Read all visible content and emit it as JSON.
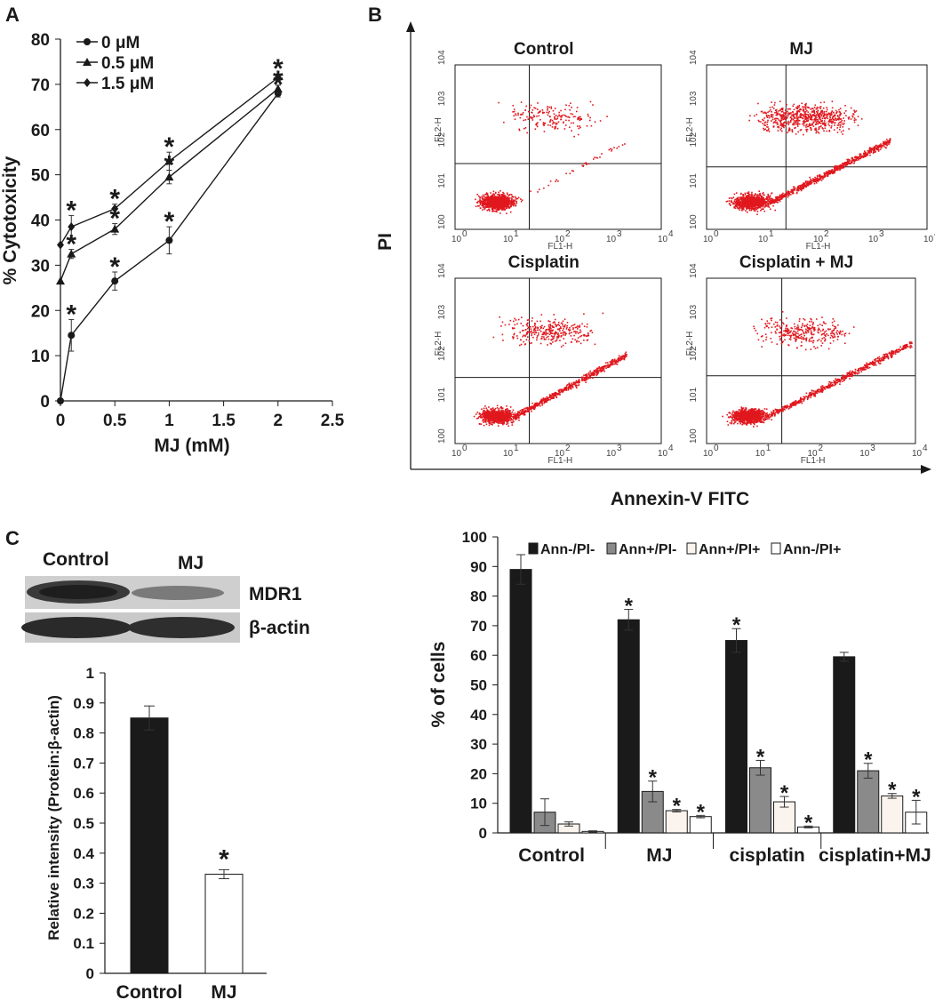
{
  "panels": {
    "a": "A",
    "b": "B",
    "c": "C"
  },
  "chart_data": [
    {
      "id": "A",
      "type": "line",
      "title": "",
      "xlabel": "MJ (mM)",
      "ylabel": "% Cytotoxicity",
      "xlim": [
        0,
        2.5
      ],
      "ylim": [
        0,
        80
      ],
      "xticks": [
        "0",
        "0.5",
        "1",
        "1.5",
        "2",
        "2.5"
      ],
      "yticks": [
        "0",
        "10",
        "20",
        "30",
        "40",
        "50",
        "60",
        "70",
        "80"
      ],
      "x": [
        0,
        0.1,
        0.5,
        1,
        2
      ],
      "series": [
        {
          "name": "0 μM",
          "marker": "circle",
          "values": [
            0,
            14.5,
            26.5,
            35.5,
            68
          ],
          "errors": [
            0,
            3.5,
            2,
            3,
            0.8
          ]
        },
        {
          "name": "0.5 μM",
          "marker": "triangle",
          "values": [
            26.5,
            32.5,
            38,
            49.5,
            69
          ],
          "errors": [
            0,
            1,
            1.2,
            1.5,
            0.8
          ]
        },
        {
          "name": "1.5 μM",
          "marker": "diamond",
          "values": [
            34.5,
            38.5,
            42.5,
            53,
            71.5
          ],
          "errors": [
            0,
            2.5,
            1,
            2,
            0.8
          ]
        }
      ],
      "annotations": [
        "*",
        "*",
        "*",
        "*",
        "*",
        "*",
        "*",
        "*",
        "*",
        "*",
        "*",
        "*"
      ],
      "legend_position": "top-left"
    },
    {
      "id": "B",
      "type": "scatter",
      "xlabel": "Annexin-V FITC",
      "ylabel": "PI",
      "plots": [
        {
          "title": "Control",
          "pattern": "control"
        },
        {
          "title": "MJ",
          "pattern": "mj"
        },
        {
          "title": "Cisplatin",
          "pattern": "cisplatin"
        },
        {
          "title": "Cisplatin + MJ",
          "pattern": "cisplatin_mj"
        }
      ],
      "axis_x_name": "FL1-H",
      "axis_y_name": "FL2-H",
      "decade_base": "10",
      "decade_exponents": [
        "0",
        "1",
        "2",
        "3",
        "4"
      ],
      "dot_color": "#e0181e"
    },
    {
      "id": "C-bar",
      "type": "bar",
      "xlabel": "",
      "ylabel": "Relative intensity (Protein:β-actin)",
      "ylim": [
        0,
        1
      ],
      "yticks": [
        "0",
        "0.1",
        "0.2",
        "0.3",
        "0.4",
        "0.5",
        "0.6",
        "0.7",
        "0.8",
        "0.9",
        "1"
      ],
      "categories": [
        "Control",
        "MJ"
      ],
      "values": [
        0.85,
        0.33
      ],
      "errors": [
        0.04,
        0.015
      ],
      "colors": [
        "#1a1a1a",
        "#ffffff"
      ],
      "annotations": [
        "",
        "*"
      ]
    },
    {
      "id": "D-bar",
      "type": "bar",
      "xlabel": "",
      "ylabel": "% of cells",
      "ylim": [
        0,
        100
      ],
      "yticks": [
        "0",
        "10",
        "20",
        "30",
        "40",
        "50",
        "60",
        "70",
        "80",
        "90",
        "100"
      ],
      "categories": [
        "Control",
        "MJ",
        "cisplatin",
        "cisplatin+MJ"
      ],
      "series": [
        {
          "name": "Ann-/PI-",
          "color": "#1a1a1a",
          "values": [
            89,
            72,
            65,
            59.5
          ],
          "errors": [
            5,
            3.5,
            4,
            1.5
          ],
          "stars": [
            "",
            "*",
            "*",
            ""
          ]
        },
        {
          "name": "Ann+/PI-",
          "color": "#8a8a8a",
          "values": [
            7,
            14,
            22,
            21
          ],
          "errors": [
            4.5,
            3.5,
            2.5,
            2.5
          ],
          "stars": [
            "",
            "*",
            "*",
            "*"
          ]
        },
        {
          "name": "Ann+/PI+",
          "color": "#fbf4ee",
          "values": [
            3,
            7.5,
            10.5,
            12.5
          ],
          "errors": [
            0.7,
            0.4,
            1.8,
            0.8
          ],
          "stars": [
            "",
            "*",
            "*",
            "*"
          ]
        },
        {
          "name": "Ann-/PI+",
          "color": "#ffffff",
          "values": [
            0.5,
            5.5,
            2,
            7
          ],
          "errors": [
            0.2,
            0.4,
            0.3,
            4
          ],
          "stars": [
            "",
            "*",
            "*",
            "*"
          ]
        }
      ],
      "legend_position": "top"
    }
  ],
  "blot": {
    "lanes": [
      "Control",
      "MJ"
    ],
    "bands": [
      "MDR1",
      "β-actin"
    ]
  }
}
